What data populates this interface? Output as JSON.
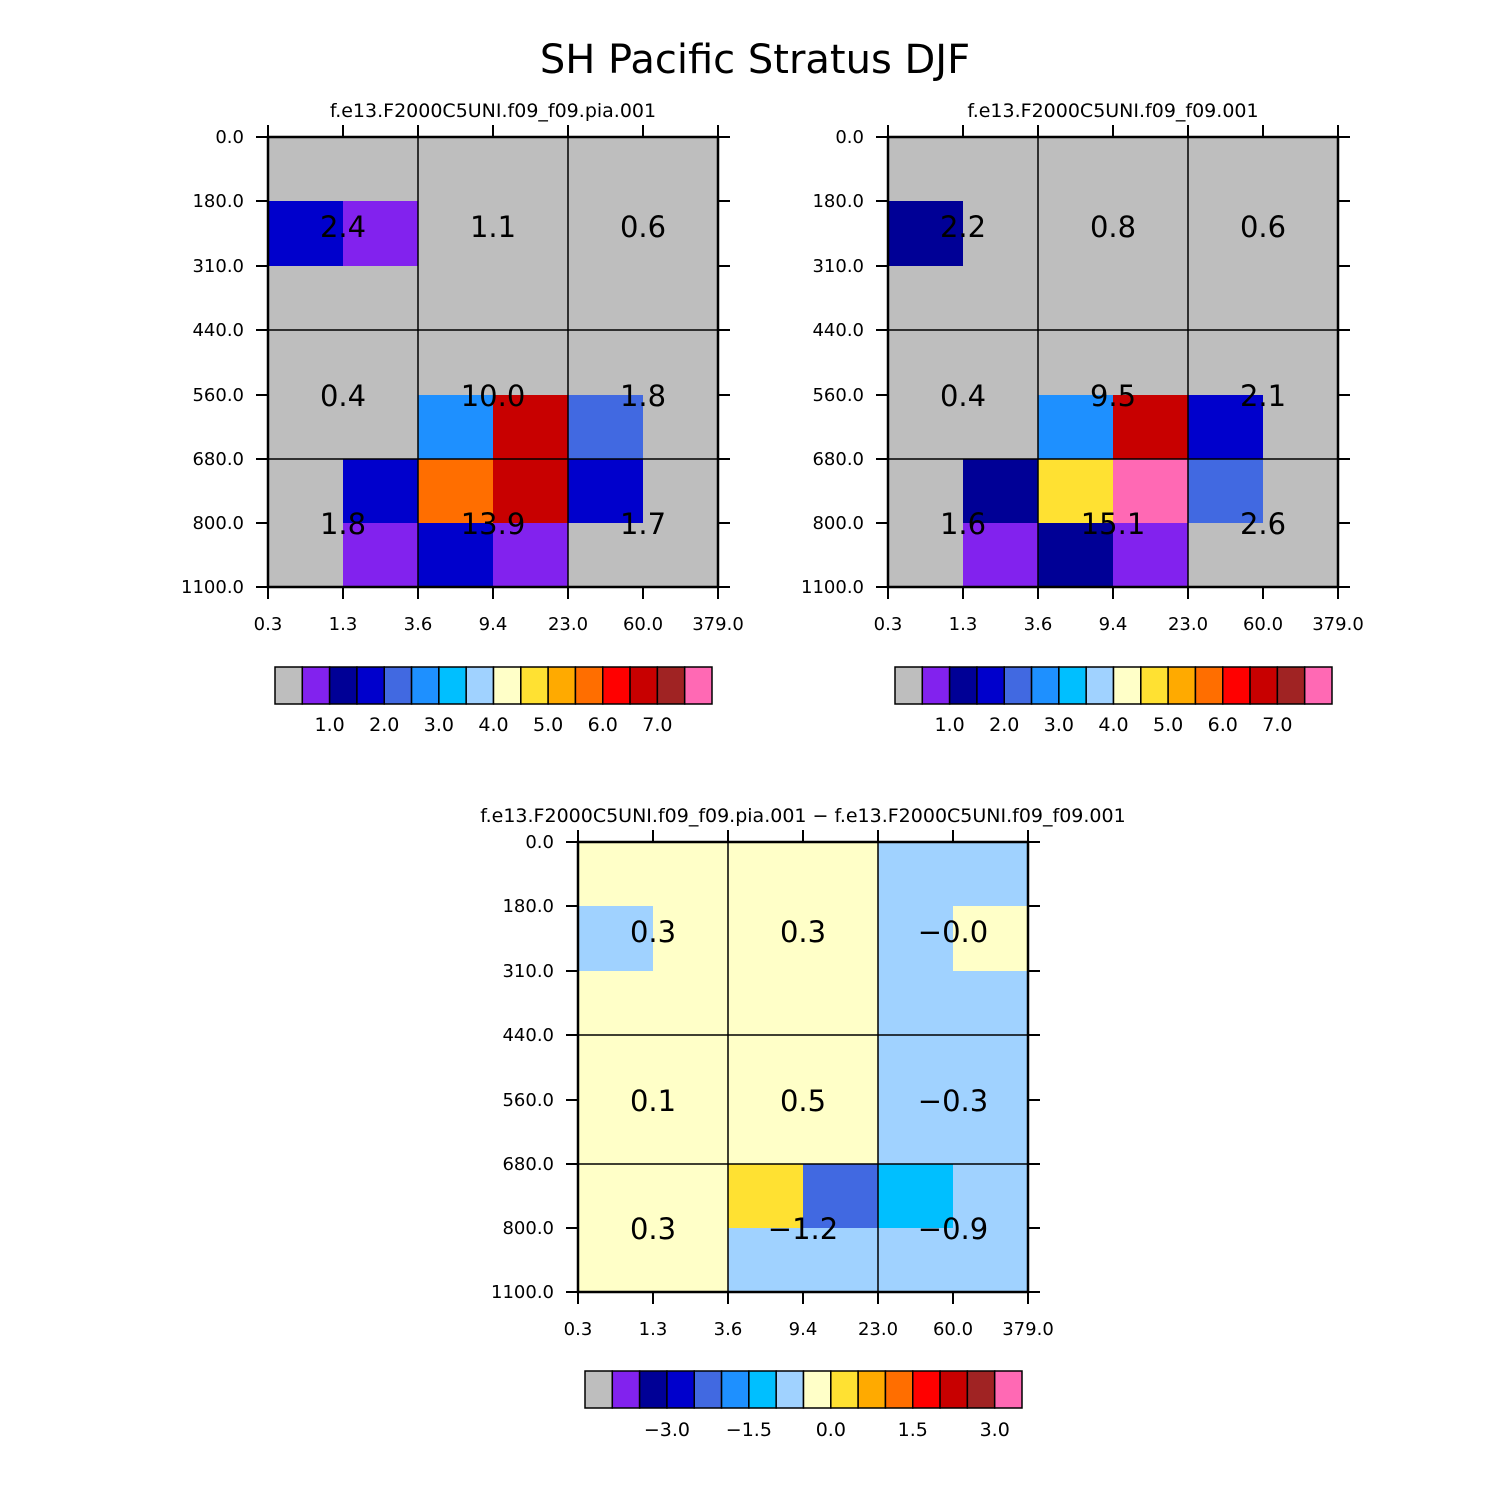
{
  "title": "SH Pacific Stratus DJF",
  "chart_data": [
    {
      "type": "heatmap",
      "title": "f.e13.F2000C5UNI.f09_f09.pia.001",
      "x_ticks": [
        "0.3",
        "1.3",
        "3.6",
        "9.4",
        "23.0",
        "60.0",
        "379.0"
      ],
      "y_ticks": [
        "0.0",
        "180.0",
        "310.0",
        "440.0",
        "560.0",
        "680.0",
        "800.0",
        "1100.0"
      ],
      "cells": [
        [
          0,
          0,
          0,
          0,
          0,
          0
        ],
        [
          3,
          1,
          0,
          0,
          0,
          0
        ],
        [
          0,
          0,
          0,
          0,
          0,
          0
        ],
        [
          0,
          0,
          0,
          0,
          0,
          0
        ],
        [
          0,
          0,
          5,
          13,
          4,
          0
        ],
        [
          0,
          3,
          11,
          13,
          3,
          0
        ],
        [
          0,
          1,
          3,
          1,
          0,
          0
        ]
      ],
      "summary_labels": [
        [
          "2.4",
          "1.1",
          "0.6"
        ],
        [
          "0.4",
          "10.0",
          "1.8"
        ],
        [
          "1.8",
          "13.9",
          "1.7"
        ]
      ],
      "colorbar_labels": [
        "1.0",
        "2.0",
        "3.0",
        "4.0",
        "5.0",
        "6.0",
        "7.0"
      ]
    },
    {
      "type": "heatmap",
      "title": "f.e13.F2000C5UNI.f09_f09.001",
      "x_ticks": [
        "0.3",
        "1.3",
        "3.6",
        "9.4",
        "23.0",
        "60.0",
        "379.0"
      ],
      "y_ticks": [
        "0.0",
        "180.0",
        "310.0",
        "440.0",
        "560.0",
        "680.0",
        "800.0",
        "1100.0"
      ],
      "cells": [
        [
          0,
          0,
          0,
          0,
          0,
          0
        ],
        [
          2,
          0,
          0,
          0,
          0,
          0
        ],
        [
          0,
          0,
          0,
          0,
          0,
          0
        ],
        [
          0,
          0,
          0,
          0,
          0,
          0
        ],
        [
          0,
          0,
          5,
          13,
          3,
          0
        ],
        [
          0,
          2,
          9,
          15,
          4,
          0
        ],
        [
          0,
          1,
          2,
          1,
          0,
          0
        ]
      ],
      "summary_labels": [
        [
          "2.2",
          "0.8",
          "0.6"
        ],
        [
          "0.4",
          "9.5",
          "2.1"
        ],
        [
          "1.6",
          "15.1",
          "2.6"
        ]
      ],
      "colorbar_labels": [
        "1.0",
        "2.0",
        "3.0",
        "4.0",
        "5.0",
        "6.0",
        "7.0"
      ]
    },
    {
      "type": "heatmap",
      "title": "f.e13.F2000C5UNI.f09_f09.pia.001 − f.e13.F2000C5UNI.f09_f09.001",
      "x_ticks": [
        "0.3",
        "1.3",
        "3.6",
        "9.4",
        "23.0",
        "60.0",
        "379.0"
      ],
      "y_ticks": [
        "0.0",
        "180.0",
        "310.0",
        "440.0",
        "560.0",
        "680.0",
        "800.0",
        "1100.0"
      ],
      "cells": [
        [
          8,
          8,
          8,
          8,
          7,
          7
        ],
        [
          7,
          8,
          8,
          8,
          7,
          8
        ],
        [
          8,
          8,
          8,
          8,
          7,
          7
        ],
        [
          8,
          8,
          8,
          8,
          7,
          7
        ],
        [
          8,
          8,
          8,
          8,
          7,
          7
        ],
        [
          8,
          8,
          9,
          4,
          6,
          7
        ],
        [
          8,
          8,
          7,
          7,
          7,
          7
        ]
      ],
      "summary_labels": [
        [
          "0.3",
          "0.3",
          "−0.0"
        ],
        [
          "0.1",
          "0.5",
          "−0.3"
        ],
        [
          "0.3",
          "−1.2",
          "−0.9"
        ]
      ],
      "colorbar_labels": [
        "−3.0",
        "−1.5",
        "0.0",
        "1.5",
        "3.0"
      ]
    }
  ],
  "palette": [
    "#bebebe",
    "#8222ee",
    "#000096",
    "#0000cc",
    "#4169e1",
    "#1e90ff",
    "#00bfff",
    "#a0d2ff",
    "#ffffc8",
    "#ffe132",
    "#ffaa00",
    "#ff6e00",
    "#ff0000",
    "#c80000",
    "#a02323",
    "#ff69b4"
  ]
}
